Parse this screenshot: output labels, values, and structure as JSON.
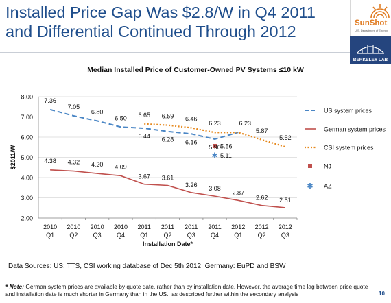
{
  "slide": {
    "title_line1": "Installed Price Gap Was $2.8/W in Q4 2011",
    "title_line2": "and Differential Continued Through 2012",
    "page_number": "10",
    "title_color": "#1f4e8c"
  },
  "logos": {
    "sunshot_word": "SunShot",
    "sunshot_sub": "U.S. Department of Energy",
    "berkeley_word": "BERKELEY LAB"
  },
  "sources": {
    "label": "Data Sources:",
    "text": " US: TTS, CSI working database of Dec 5th 2012;  Germany: EuPD and BSW"
  },
  "note": {
    "label": "* Note:",
    "text": " German system prices are available by quote date, rather than by installation date.  However, the average time lag between price quote and installation date is much shorter in Germany than in the US., as described further within the secondary analysis"
  },
  "chart_data": {
    "type": "line",
    "title": "Median Installed Price of Customer-Owned PV Systems ≤10 kW",
    "xlabel": "Installation Date*",
    "ylabel": "$2011/W",
    "ylim": [
      2.0,
      8.0
    ],
    "yticks": [
      "2.00",
      "3.00",
      "4.00",
      "5.00",
      "6.00",
      "7.00",
      "8.00"
    ],
    "grid": true,
    "legend_position": "right",
    "categories": [
      [
        "2010",
        "Q1"
      ],
      [
        "2010",
        "Q2"
      ],
      [
        "2010",
        "Q3"
      ],
      [
        "2010",
        "Q4"
      ],
      [
        "2011",
        "Q1"
      ],
      [
        "2011",
        "Q2"
      ],
      [
        "2011",
        "Q3"
      ],
      [
        "2011",
        "Q4"
      ],
      [
        "2012",
        "Q1"
      ],
      [
        "2012",
        "Q2"
      ],
      [
        "2012",
        "Q3"
      ]
    ],
    "series": [
      {
        "name": "US system prices",
        "style": "dashed",
        "color": "#4a86c5",
        "values": [
          7.36,
          7.05,
          6.8,
          6.5,
          6.44,
          6.28,
          6.16,
          5.9,
          6.23,
          null,
          null
        ],
        "labels": [
          "7.36",
          "7.05",
          "6.80",
          "6.50",
          "6.44",
          "6.28",
          "6.16",
          "5.90",
          "",
          "",
          ""
        ]
      },
      {
        "name": "German system prices",
        "style": "solid",
        "color": "#c0504d",
        "values": [
          4.38,
          4.32,
          4.2,
          4.09,
          3.67,
          3.61,
          3.26,
          3.08,
          2.87,
          2.62,
          2.51
        ],
        "labels": [
          "4.38",
          "4.32",
          "4.20",
          "4.09",
          "3.67",
          "3.61",
          "3.26",
          "3.08",
          "2.87",
          "2.62",
          "2.51"
        ]
      },
      {
        "name": "CSI system prices",
        "style": "dotted",
        "color": "#e6891e",
        "values": [
          null,
          null,
          null,
          null,
          6.65,
          6.59,
          6.46,
          6.23,
          6.23,
          5.87,
          5.52
        ],
        "labels": [
          "",
          "",
          "",
          "",
          "6.65",
          "6.59",
          "6.46",
          "6.23",
          "6.23",
          "5.87",
          "5.52"
        ]
      },
      {
        "name": "NJ",
        "style": "square-marker",
        "color": "#c0504d",
        "points": [
          {
            "x": 7,
            "y": 5.56,
            "label": "5.56"
          }
        ]
      },
      {
        "name": "AZ",
        "style": "asterisk-marker",
        "color": "#4a86c5",
        "points": [
          {
            "x": 7,
            "y": 5.11,
            "label": "5.11"
          }
        ]
      }
    ]
  }
}
